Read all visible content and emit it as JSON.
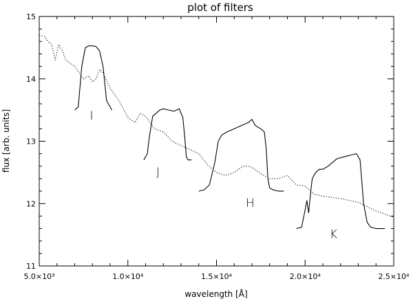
{
  "chart_data": {
    "type": "line",
    "title": "plot of filters",
    "xlabel": "wavelength [Å]",
    "ylabel": "flux [arb. units]",
    "xlim": [
      5000,
      25000
    ],
    "ylim": [
      11,
      15
    ],
    "grid": false,
    "xticks": [
      {
        "value": 5000,
        "label": "5.0×10³"
      },
      {
        "value": 10000,
        "label": "1.0×10⁴"
      },
      {
        "value": 15000,
        "label": "1.5×10⁴"
      },
      {
        "value": 20000,
        "label": "2.0×10⁴"
      },
      {
        "value": 25000,
        "label": "2.5×10⁴"
      }
    ],
    "yticks": [
      {
        "value": 11,
        "label": "11"
      },
      {
        "value": 12,
        "label": "12"
      },
      {
        "value": 13,
        "label": "13"
      },
      {
        "value": 14,
        "label": "14"
      },
      {
        "value": 15,
        "label": "15"
      }
    ],
    "series": [
      {
        "style": "dotted",
        "x": [
          5000,
          5300,
          5500,
          5700,
          5900,
          6100,
          6300,
          6500,
          7000,
          7500,
          7800,
          8000,
          8200,
          8400,
          8600,
          9000,
          9500,
          10000,
          10400,
          10700,
          11000,
          11500,
          12000,
          12500,
          13000,
          13500,
          14000,
          14500,
          15000,
          15500,
          16000,
          16500,
          16800,
          17000,
          17500,
          18000,
          18500,
          19000,
          19500,
          20000,
          20500,
          21000,
          22000,
          23000,
          24000,
          25000
        ],
        "y": [
          14.7,
          14.68,
          14.6,
          14.55,
          14.3,
          14.55,
          14.45,
          14.3,
          14.2,
          14.0,
          14.05,
          13.95,
          14.0,
          14.15,
          14.1,
          13.85,
          13.65,
          13.38,
          13.3,
          13.45,
          13.4,
          13.2,
          13.15,
          13.0,
          12.93,
          12.87,
          12.8,
          12.62,
          12.5,
          12.45,
          12.5,
          12.6,
          12.6,
          12.58,
          12.48,
          12.4,
          12.4,
          12.45,
          12.3,
          12.28,
          12.15,
          12.12,
          12.08,
          12.02,
          11.88,
          11.78
        ]
      },
      {
        "style": "solid",
        "x": [
          7000,
          7200,
          7400,
          7600,
          7800,
          8000,
          8200,
          8400,
          8600,
          8800,
          9000,
          9100
        ],
        "y": [
          13.5,
          13.55,
          14.2,
          14.5,
          14.53,
          14.53,
          14.52,
          14.45,
          14.2,
          13.65,
          13.55,
          13.5
        ]
      },
      {
        "style": "solid",
        "x": [
          10900,
          11100,
          11200,
          11400,
          11600,
          11800,
          12000,
          12300,
          12600,
          12900,
          13100,
          13200,
          13300,
          13400,
          13500,
          13600
        ],
        "y": [
          12.7,
          12.8,
          13.05,
          13.4,
          13.45,
          13.5,
          13.52,
          13.5,
          13.48,
          13.52,
          13.38,
          13.1,
          12.75,
          12.7,
          12.7,
          12.7
        ]
      },
      {
        "style": "solid",
        "x": [
          14000,
          14300,
          14600,
          14900,
          15100,
          15300,
          15600,
          16000,
          16400,
          16800,
          17000,
          17200,
          17500,
          17700,
          17800,
          17900,
          18000,
          18200,
          18500,
          18800
        ],
        "y": [
          12.2,
          12.22,
          12.3,
          12.65,
          13.0,
          13.1,
          13.15,
          13.2,
          13.25,
          13.3,
          13.35,
          13.25,
          13.2,
          13.15,
          12.9,
          12.4,
          12.25,
          12.22,
          12.2,
          12.2
        ]
      },
      {
        "style": "solid",
        "x": [
          19500,
          19800,
          20000,
          20100,
          20200,
          20300,
          20400,
          20600,
          20800,
          21000,
          21300,
          21500,
          21800,
          22200,
          22600,
          22900,
          23100,
          23300,
          23500,
          23700,
          24000,
          24500
        ],
        "y": [
          11.6,
          11.62,
          11.9,
          12.05,
          11.85,
          12.15,
          12.4,
          12.5,
          12.55,
          12.55,
          12.6,
          12.65,
          12.72,
          12.75,
          12.78,
          12.8,
          12.7,
          12.0,
          11.7,
          11.62,
          11.6,
          11.6
        ]
      }
    ],
    "annotations": [
      {
        "text": "I",
        "x": 7950,
        "y": 13.5
      },
      {
        "text": "J",
        "x": 11700,
        "y": 12.6
      },
      {
        "text": "H",
        "x": 16900,
        "y": 12.1
      },
      {
        "text": "K",
        "x": 21600,
        "y": 11.6
      }
    ]
  }
}
